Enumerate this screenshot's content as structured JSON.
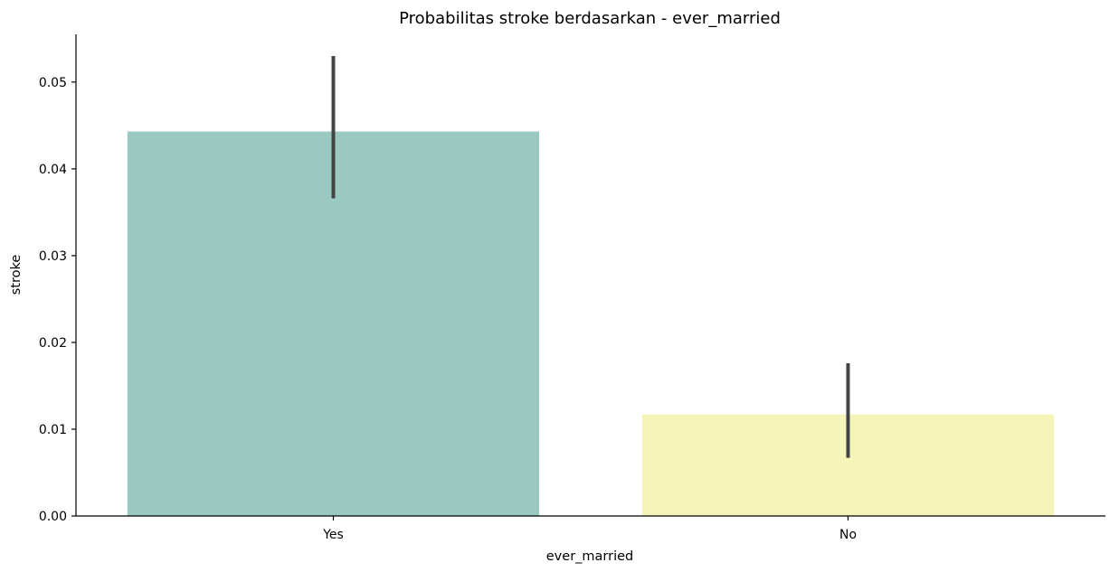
{
  "chart_data": {
    "type": "bar",
    "title": "Probabilitas stroke berdasarkan - ever_married",
    "xlabel": "ever_married",
    "ylabel": "stroke",
    "categories": [
      "Yes",
      "No"
    ],
    "values": [
      0.0443,
      0.0117
    ],
    "error_bars": [
      [
        0.0366,
        0.053
      ],
      [
        0.0067,
        0.0176
      ]
    ],
    "colors": [
      "#99c9c1",
      "#f5f4b9"
    ],
    "error_bar_color": "#444444",
    "ylim": [
      0,
      0.0555
    ],
    "yticks": [
      0,
      0.01,
      0.02,
      0.03,
      0.04,
      0.05
    ],
    "ytick_labels": [
      "0.00",
      "0.01",
      "0.02",
      "0.03",
      "0.04",
      "0.05"
    ],
    "grid": false,
    "legend": "none"
  }
}
